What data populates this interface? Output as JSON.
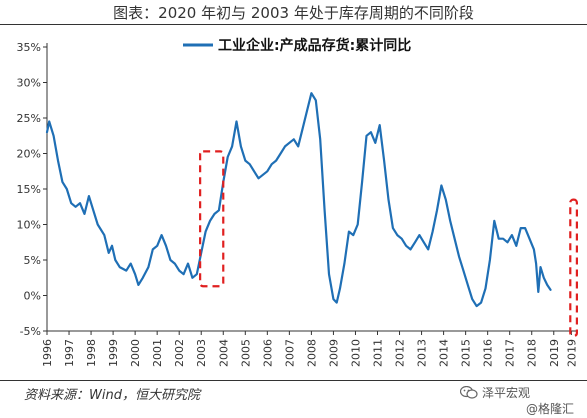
{
  "header": {
    "title": "图表：2020 年初与 2003 年处于库存周期的不同阶段"
  },
  "footer": {
    "source": "资料来源：Wind，恒大研究院"
  },
  "watermark": {
    "line1": "泽平宏观",
    "line2": "@格隆汇",
    "icon": "wechat-icon"
  },
  "chart_data": {
    "type": "line",
    "title": "",
    "xlabel": "",
    "ylabel": "",
    "legend_position": "top-center",
    "ylim": [
      -5,
      35
    ],
    "yticks": [
      "35%",
      "30%",
      "25%",
      "20%",
      "15%",
      "10%",
      "5%",
      "0%",
      "-5%"
    ],
    "ytick_values": [
      35,
      30,
      25,
      20,
      15,
      10,
      5,
      0,
      -5
    ],
    "xticks": [
      "1996",
      "1997",
      "1998",
      "1999",
      "2000",
      "2001",
      "2002",
      "2003",
      "2004",
      "2005",
      "2006",
      "2007",
      "2008",
      "2009",
      "2010",
      "2011",
      "2012",
      "2013",
      "2014",
      "2015",
      "2016",
      "2017",
      "2018",
      "2019",
      "2019"
    ],
    "xtick_positions": [
      1996,
      1997,
      1998,
      1999,
      2000,
      2001,
      2002,
      2003,
      2004,
      2005,
      2006,
      2007,
      2008,
      2009,
      2010,
      2011,
      2012,
      2013,
      2014,
      2015,
      2016,
      2017,
      2018,
      2019,
      2019.8
    ],
    "xlim": [
      1996,
      2020.1
    ],
    "line_color": "#1f6fb5",
    "highlight_color": "#e02020",
    "series": [
      {
        "name": "工业企业:产成品存货:累计同比",
        "points": [
          [
            1996.0,
            23.0
          ],
          [
            1996.1,
            24.5
          ],
          [
            1996.3,
            22.5
          ],
          [
            1996.5,
            19.0
          ],
          [
            1996.7,
            16.0
          ],
          [
            1996.9,
            15.0
          ],
          [
            1997.1,
            13.0
          ],
          [
            1997.3,
            12.5
          ],
          [
            1997.5,
            13.0
          ],
          [
            1997.7,
            11.5
          ],
          [
            1997.9,
            14.0
          ],
          [
            1998.1,
            12.0
          ],
          [
            1998.3,
            10.0
          ],
          [
            1998.6,
            8.5
          ],
          [
            1998.8,
            6.0
          ],
          [
            1998.95,
            7.0
          ],
          [
            1999.1,
            5.0
          ],
          [
            1999.3,
            4.0
          ],
          [
            1999.6,
            3.5
          ],
          [
            1999.8,
            4.5
          ],
          [
            2000.0,
            3.0
          ],
          [
            2000.15,
            1.5
          ],
          [
            2000.35,
            2.5
          ],
          [
            2000.6,
            4.0
          ],
          [
            2000.8,
            6.5
          ],
          [
            2001.0,
            7.0
          ],
          [
            2001.2,
            8.5
          ],
          [
            2001.4,
            7.0
          ],
          [
            2001.6,
            5.0
          ],
          [
            2001.8,
            4.5
          ],
          [
            2002.0,
            3.5
          ],
          [
            2002.2,
            3.0
          ],
          [
            2002.4,
            4.5
          ],
          [
            2002.6,
            2.5
          ],
          [
            2002.8,
            3.0
          ],
          [
            2003.0,
            6.0
          ],
          [
            2003.2,
            9.0
          ],
          [
            2003.4,
            10.5
          ],
          [
            2003.6,
            11.5
          ],
          [
            2003.8,
            12.0
          ],
          [
            2004.0,
            16.0
          ],
          [
            2004.2,
            19.5
          ],
          [
            2004.4,
            21.0
          ],
          [
            2004.6,
            24.5
          ],
          [
            2004.8,
            21.0
          ],
          [
            2005.0,
            19.0
          ],
          [
            2005.2,
            18.5
          ],
          [
            2005.4,
            17.5
          ],
          [
            2005.6,
            16.5
          ],
          [
            2005.8,
            17.0
          ],
          [
            2006.0,
            17.5
          ],
          [
            2006.2,
            18.5
          ],
          [
            2006.4,
            19.0
          ],
          [
            2006.6,
            20.0
          ],
          [
            2006.8,
            21.0
          ],
          [
            2007.0,
            21.5
          ],
          [
            2007.2,
            22.0
          ],
          [
            2007.4,
            21.0
          ],
          [
            2007.6,
            23.5
          ],
          [
            2007.8,
            26.0
          ],
          [
            2008.0,
            28.5
          ],
          [
            2008.2,
            27.5
          ],
          [
            2008.4,
            22.0
          ],
          [
            2008.6,
            12.0
          ],
          [
            2008.8,
            3.0
          ],
          [
            2009.0,
            -0.5
          ],
          [
            2009.15,
            -1.0
          ],
          [
            2009.3,
            1.0
          ],
          [
            2009.5,
            4.5
          ],
          [
            2009.7,
            9.0
          ],
          [
            2009.9,
            8.5
          ],
          [
            2010.1,
            10.0
          ],
          [
            2010.3,
            16.0
          ],
          [
            2010.5,
            22.5
          ],
          [
            2010.7,
            23.0
          ],
          [
            2010.9,
            21.5
          ],
          [
            2011.1,
            24.0
          ],
          [
            2011.3,
            19.0
          ],
          [
            2011.5,
            13.5
          ],
          [
            2011.7,
            9.5
          ],
          [
            2011.9,
            8.5
          ],
          [
            2012.1,
            8.0
          ],
          [
            2012.3,
            7.0
          ],
          [
            2012.5,
            6.5
          ],
          [
            2012.7,
            7.5
          ],
          [
            2012.9,
            8.5
          ],
          [
            2013.1,
            7.5
          ],
          [
            2013.3,
            6.5
          ],
          [
            2013.5,
            9.0
          ],
          [
            2013.7,
            12.0
          ],
          [
            2013.9,
            15.5
          ],
          [
            2014.1,
            13.5
          ],
          [
            2014.3,
            10.5
          ],
          [
            2014.5,
            8.0
          ],
          [
            2014.7,
            5.5
          ],
          [
            2014.9,
            3.5
          ],
          [
            2015.1,
            1.5
          ],
          [
            2015.3,
            -0.5
          ],
          [
            2015.5,
            -1.5
          ],
          [
            2015.7,
            -1.0
          ],
          [
            2015.9,
            1.0
          ],
          [
            2016.1,
            5.0
          ],
          [
            2016.3,
            10.5
          ],
          [
            2016.5,
            8.0
          ],
          [
            2016.7,
            8.0
          ],
          [
            2016.9,
            7.5
          ],
          [
            2017.1,
            8.5
          ],
          [
            2017.3,
            7.0
          ],
          [
            2017.5,
            9.5
          ],
          [
            2017.7,
            9.5
          ],
          [
            2017.9,
            8.0
          ],
          [
            2018.1,
            6.5
          ],
          [
            2018.2,
            4.5
          ],
          [
            2018.3,
            0.5
          ],
          [
            2018.4,
            4.0
          ],
          [
            2018.55,
            2.5
          ],
          [
            2018.7,
            1.5
          ],
          [
            2018.85,
            0.8
          ]
        ]
      }
    ],
    "highlight_boxes": [
      {
        "label": "2003",
        "x0": 2002.95,
        "x1": 2004.0,
        "y0": 1.3,
        "y1": 20.3
      },
      {
        "label": "2020",
        "x0": 2019.75,
        "x1": 2020.05,
        "y0": -5.7,
        "y1": 13.5
      }
    ]
  }
}
